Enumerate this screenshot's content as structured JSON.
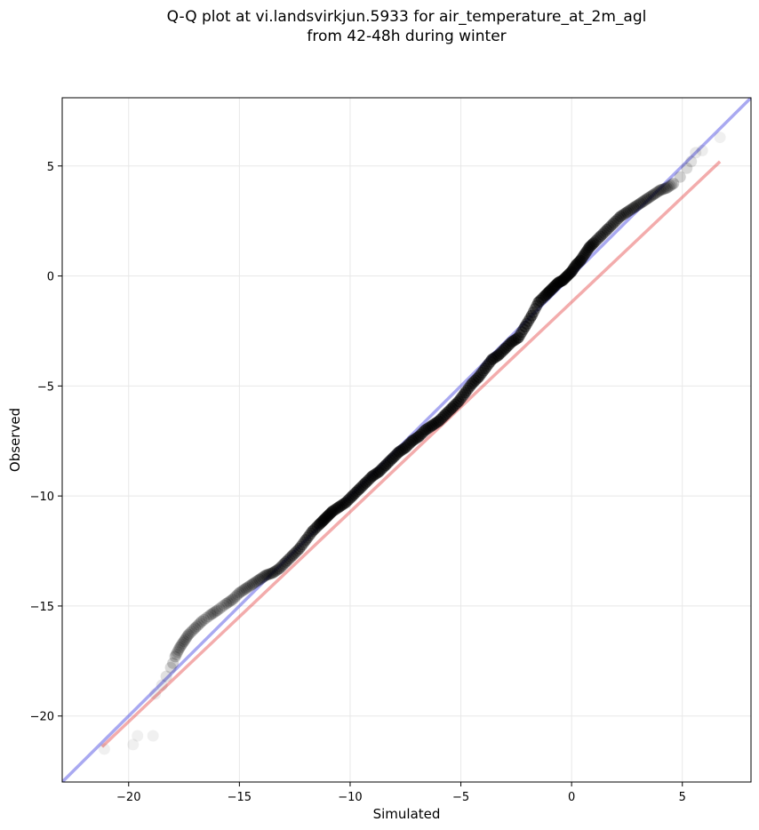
{
  "chart_data": {
    "type": "scatter",
    "title_line1": "Q-Q plot at vi.landsvirkjun.5933 for air_temperature_at_2m_agl",
    "title_line2": "from 42-48h during winter",
    "xlabel": "Simulated",
    "ylabel": "Observed",
    "xlim": [
      -23,
      8.1
    ],
    "ylim": [
      -23,
      8.1
    ],
    "xticks": [
      -20,
      -15,
      -10,
      -5,
      0,
      5
    ],
    "yticks": [
      -20,
      -15,
      -10,
      -5,
      0,
      5
    ],
    "tick_labels": [
      "−20",
      "−15",
      "−10",
      "−5",
      "0",
      "5"
    ],
    "grid": true,
    "colors": {
      "points": "#000000",
      "identity_line": "#4040e0",
      "fit_line": "#e03030",
      "grid": "#e8e8e8"
    },
    "identity_line": {
      "x": [
        -23,
        8.1
      ],
      "y": [
        -23,
        8.1
      ]
    },
    "fit_line": {
      "x": [
        -21.2,
        6.7
      ],
      "y": [
        -21.4,
        5.2
      ]
    },
    "series": [
      {
        "x": [
          -21.1,
          -19.8,
          -19.6,
          -18.9,
          -18.8,
          -18.5,
          -18.3,
          -18.1,
          -18.0,
          -17.9,
          -17.7,
          -17.5,
          -17.3,
          -17.0,
          -16.7,
          -16.3,
          -16.0,
          -15.6,
          -15.3,
          -15.0,
          -14.7,
          -14.4,
          -14.1,
          -13.8,
          -13.5,
          -13.2,
          -12.9,
          -12.6,
          -12.3,
          -12.0,
          -11.7,
          -11.4,
          -11.2,
          -11.0,
          -10.8,
          -10.5,
          -10.2,
          -9.9,
          -9.6,
          -9.3,
          -9.0,
          -8.7,
          -8.4,
          -8.1,
          -7.8,
          -7.5,
          -7.2,
          -6.9,
          -6.6,
          -6.3,
          -6.0,
          -5.7,
          -5.4,
          -5.1,
          -4.8,
          -4.5,
          -4.2,
          -3.9,
          -3.6,
          -3.3,
          -3.0,
          -2.7,
          -2.4,
          -2.1,
          -1.8,
          -1.5,
          -1.2,
          -1.0,
          -0.8,
          -0.6,
          -0.4,
          -0.2,
          0.0,
          0.2,
          0.4,
          0.6,
          0.8,
          1.0,
          1.3,
          1.6,
          1.9,
          2.2,
          2.5,
          2.8,
          3.1,
          3.4,
          3.7,
          4.0,
          4.3,
          4.6,
          4.9,
          5.2,
          5.4,
          5.6,
          5.9,
          6.7
        ],
        "y": [
          -21.5,
          -21.3,
          -20.9,
          -20.9,
          -19.0,
          -18.6,
          -18.2,
          -17.8,
          -17.6,
          -17.3,
          -16.9,
          -16.6,
          -16.3,
          -16.0,
          -15.7,
          -15.4,
          -15.2,
          -14.9,
          -14.7,
          -14.4,
          -14.2,
          -14.0,
          -13.8,
          -13.6,
          -13.5,
          -13.3,
          -13.0,
          -12.7,
          -12.4,
          -12.0,
          -11.6,
          -11.3,
          -11.1,
          -10.9,
          -10.7,
          -10.5,
          -10.3,
          -10.0,
          -9.7,
          -9.4,
          -9.1,
          -8.9,
          -8.6,
          -8.3,
          -8.0,
          -7.8,
          -7.5,
          -7.3,
          -7.0,
          -6.8,
          -6.6,
          -6.3,
          -6.0,
          -5.7,
          -5.3,
          -4.9,
          -4.6,
          -4.2,
          -3.8,
          -3.6,
          -3.3,
          -3.0,
          -2.8,
          -2.3,
          -1.8,
          -1.2,
          -0.9,
          -0.7,
          -0.5,
          -0.3,
          -0.2,
          0.0,
          0.2,
          0.5,
          0.7,
          1.0,
          1.3,
          1.5,
          1.8,
          2.1,
          2.4,
          2.7,
          2.9,
          3.1,
          3.3,
          3.5,
          3.7,
          3.9,
          4.0,
          4.2,
          4.5,
          4.9,
          5.2,
          5.6,
          5.7,
          6.3
        ],
        "opacity": [
          0.1,
          0.1,
          0.1,
          0.1,
          0.12,
          0.15,
          0.2,
          0.25,
          0.3,
          0.35,
          0.35,
          0.35,
          0.35,
          0.35,
          0.35,
          0.35,
          0.35,
          0.35,
          0.35,
          0.35,
          0.4,
          0.4,
          0.45,
          0.5,
          0.55,
          0.55,
          0.6,
          0.6,
          0.65,
          0.7,
          0.75,
          0.8,
          0.85,
          0.85,
          0.85,
          0.85,
          0.85,
          0.85,
          0.85,
          0.85,
          0.85,
          0.85,
          0.85,
          0.85,
          0.85,
          0.85,
          0.85,
          0.85,
          0.85,
          0.85,
          0.85,
          0.85,
          0.85,
          0.85,
          0.85,
          0.85,
          0.85,
          0.85,
          0.85,
          0.85,
          0.85,
          0.85,
          0.85,
          0.85,
          0.85,
          0.85,
          0.85,
          0.85,
          0.85,
          0.85,
          0.85,
          0.85,
          0.85,
          0.8,
          0.8,
          0.75,
          0.75,
          0.7,
          0.65,
          0.65,
          0.6,
          0.6,
          0.55,
          0.55,
          0.5,
          0.5,
          0.45,
          0.45,
          0.4,
          0.35,
          0.3,
          0.25,
          0.2,
          0.15,
          0.12,
          0.1
        ]
      }
    ]
  }
}
